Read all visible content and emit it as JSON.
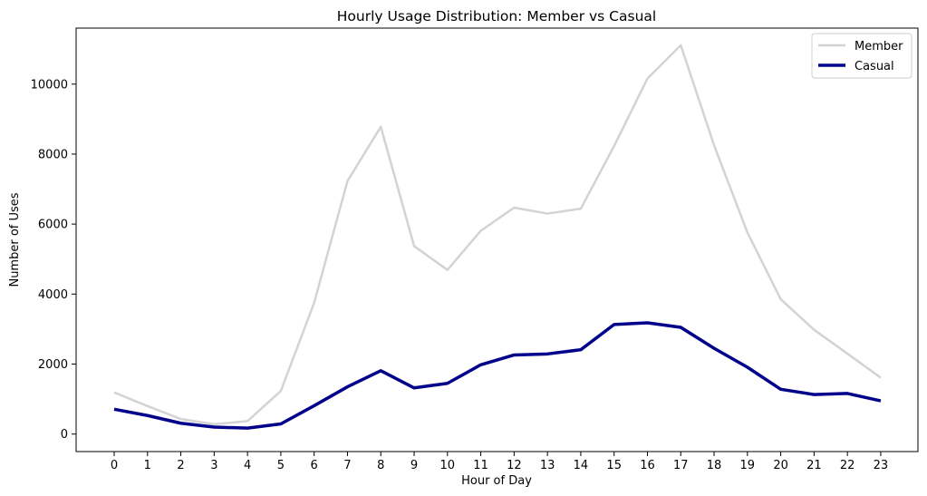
{
  "chart_data": {
    "type": "line",
    "title": "Hourly Usage Distribution: Member vs Casual",
    "xlabel": "Hour of Day",
    "ylabel": "Number of Uses",
    "x": [
      "0",
      "1",
      "2",
      "3",
      "4",
      "5",
      "6",
      "7",
      "8",
      "9",
      "10",
      "11",
      "12",
      "13",
      "14",
      "15",
      "16",
      "17",
      "18",
      "19",
      "20",
      "21",
      "22",
      "23"
    ],
    "yticks": [
      0,
      2000,
      4000,
      6000,
      8000,
      10000
    ],
    "ylim": [
      -500,
      11600
    ],
    "grid": false,
    "legend_position": "top-right",
    "series": [
      {
        "name": "Member",
        "color": "#d3d3d3",
        "values": [
          1190,
          800,
          430,
          280,
          370,
          1230,
          3750,
          7230,
          8780,
          5370,
          4690,
          5810,
          6470,
          6300,
          6440,
          8230,
          10160,
          11110,
          8250,
          5760,
          3850,
          2980,
          2300,
          1610
        ]
      },
      {
        "name": "Casual",
        "color": "#00008b",
        "values": [
          710,
          530,
          310,
          200,
          170,
          290,
          810,
          1350,
          1810,
          1320,
          1450,
          1980,
          2260,
          2290,
          2410,
          3130,
          3180,
          3050,
          2450,
          1910,
          1280,
          1130,
          1160,
          950
        ]
      }
    ]
  }
}
